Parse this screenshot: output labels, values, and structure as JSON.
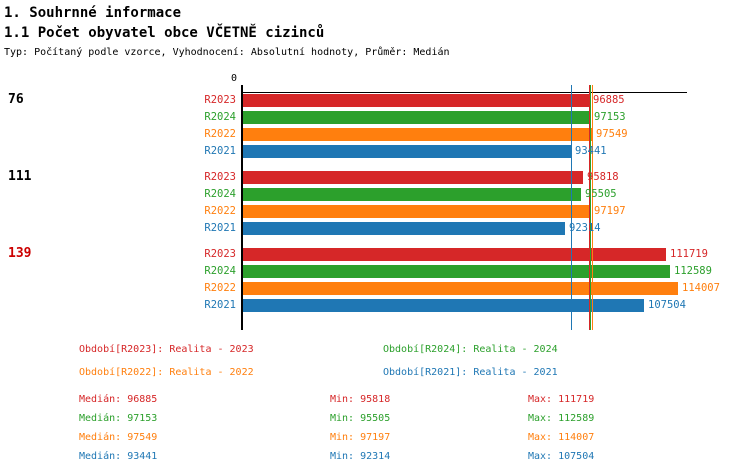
{
  "header": {
    "title": "1. Souhrnné informace",
    "subtitle": "1.1 Počet obyvatel obce VČETNĚ cizinců",
    "meta": "Typ: Počítaný podle vzorce, Vyhodnocení: Absolutní hodnoty, Průměr: Medián"
  },
  "colors": {
    "R2023": "#d62728",
    "R2024": "#2ca02c",
    "R2022": "#ff7f0e",
    "R2021": "#1f77b4",
    "highlight_group_label": "#cc0000",
    "axis": "#000000"
  },
  "chart_data": {
    "type": "bar",
    "orientation": "horizontal",
    "axis_zero_label": "0",
    "series_order": [
      "R2023",
      "R2024",
      "R2022",
      "R2021"
    ],
    "groups": [
      {
        "label": "76",
        "label_color": "#000000",
        "bars": [
          {
            "series": "R2023",
            "value": 96885
          },
          {
            "series": "R2024",
            "value": 97153
          },
          {
            "series": "R2022",
            "value": 97549
          },
          {
            "series": "R2021",
            "value": 93441
          }
        ]
      },
      {
        "label": "111",
        "label_color": "#000000",
        "bars": [
          {
            "series": "R2023",
            "value": 95818
          },
          {
            "series": "R2024",
            "value": 95505
          },
          {
            "series": "R2022",
            "value": 97197
          },
          {
            "series": "R2021",
            "value": 92314
          }
        ]
      },
      {
        "label": "139",
        "label_color": "#cc0000",
        "bars": [
          {
            "series": "R2023",
            "value": 111719
          },
          {
            "series": "R2024",
            "value": 112589
          },
          {
            "series": "R2022",
            "value": 114007
          },
          {
            "series": "R2021",
            "value": 107504
          }
        ]
      }
    ],
    "median_markers": {
      "R2023": 96885,
      "R2024": 97153,
      "R2022": 97549,
      "R2021": 93441
    }
  },
  "legend": [
    {
      "label": "Období[R2023]:",
      "value": "Realita - 2023",
      "color": "#d62728"
    },
    {
      "label": "Období[R2024]:",
      "value": "Realita - 2024",
      "color": "#2ca02c"
    },
    {
      "label": "Období[R2022]:",
      "value": "Realita - 2022",
      "color": "#ff7f0e"
    },
    {
      "label": "Období[R2021]:",
      "value": "Realita - 2021",
      "color": "#1f77b4"
    }
  ],
  "stats": [
    {
      "series": "R2023",
      "color": "#d62728",
      "median_label": "Medián:",
      "median": "96885",
      "min_label": "Min:",
      "min": "95818",
      "max_label": "Max:",
      "max": "111719"
    },
    {
      "series": "R2024",
      "color": "#2ca02c",
      "median_label": "Medián:",
      "median": "97153",
      "min_label": "Min:",
      "min": "95505",
      "max_label": "Max:",
      "max": "112589"
    },
    {
      "series": "R2022",
      "color": "#ff7f0e",
      "median_label": "Medián:",
      "median": "97549",
      "min_label": "Min:",
      "min": "97197",
      "max_label": "Max:",
      "max": "114007"
    },
    {
      "series": "R2021",
      "color": "#1f77b4",
      "median_label": "Medián:",
      "median": "93441",
      "min_label": "Min:",
      "min": "92314",
      "max_label": "Max:",
      "max": "107504"
    }
  ]
}
